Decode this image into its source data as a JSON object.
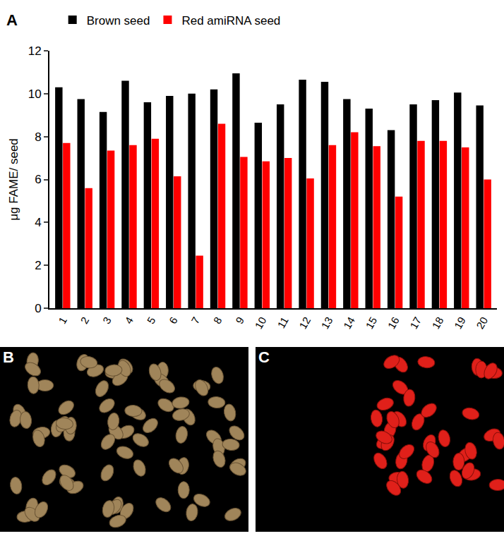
{
  "chart_data": {
    "type": "bar",
    "annotations": [
      "A"
    ],
    "y_label": "μg FAME/ seed",
    "categories": [
      "1",
      "2",
      "3",
      "4",
      "5",
      "6",
      "7",
      "8",
      "9",
      "10",
      "11",
      "12",
      "13",
      "14",
      "15",
      "16",
      "17",
      "18",
      "19",
      "20"
    ],
    "series": [
      {
        "name": "Brown seed",
        "color": "#000000",
        "values": [
          10.3,
          9.75,
          9.15,
          10.6,
          9.6,
          9.9,
          10.0,
          10.2,
          10.95,
          8.65,
          9.5,
          10.65,
          10.55,
          9.75,
          9.3,
          8.3,
          9.5,
          9.7,
          10.05,
          9.45
        ]
      },
      {
        "name": "Red amiRNA seed",
        "color": "#ff0000",
        "values": [
          7.7,
          5.6,
          7.35,
          7.6,
          7.9,
          6.15,
          2.45,
          8.6,
          7.05,
          6.85,
          7.0,
          6.05,
          7.6,
          8.2,
          7.55,
          5.2,
          7.8,
          7.8,
          7.5,
          6.0
        ]
      }
    ],
    "ylim": [
      0,
      12
    ],
    "yticks": [
      0,
      2,
      4,
      6,
      8,
      10,
      12
    ],
    "grid": false,
    "legend": "top"
  },
  "panels": [
    {
      "label": "B"
    },
    {
      "label": "C"
    }
  ]
}
